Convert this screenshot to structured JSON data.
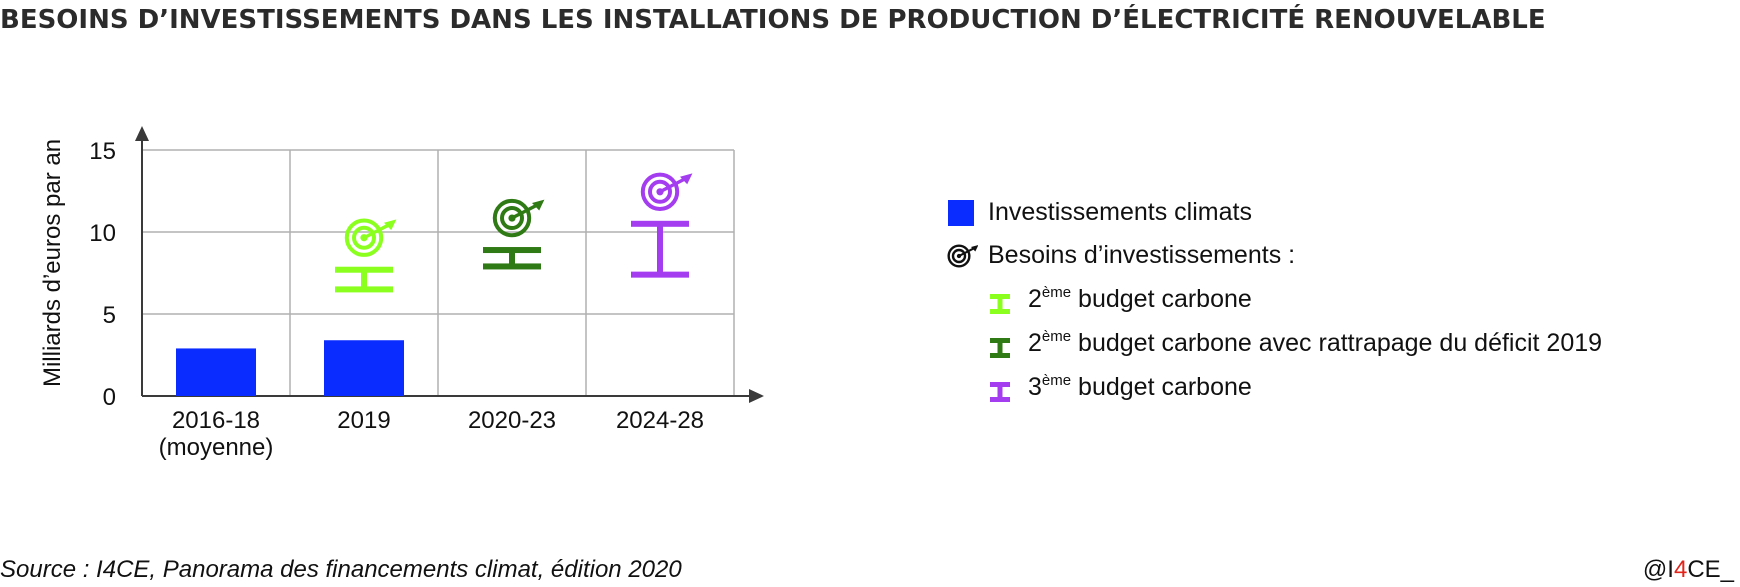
{
  "title": "BESOINS D’INVESTISSEMENTS DANS LES INSTALLATIONS DE PRODUCTION D’ÉLECTRICITÉ RENOUVELABLE",
  "source": "Source : I4CE, Panorama des financements climat, édition 2020",
  "brand": {
    "prefix": "@I",
    "highlight": "4",
    "suffix": "CE_"
  },
  "colors": {
    "bars": "#0a2cff",
    "budget2": "#8bff1e",
    "budget2_catchup": "#2f7a14",
    "budget3": "#a43cf0",
    "grid": "#b0b0b0",
    "axis": "#3a3a3a"
  },
  "legend": {
    "bars_label": "Investissements climats",
    "needs_label": "Besoins d’investissements :",
    "items": [
      {
        "ord": "2",
        "sup": "ème",
        "text": "budget carbone"
      },
      {
        "ord": "2",
        "sup": "ème",
        "text": "budget carbone avec rattrapage du déficit 2019"
      },
      {
        "ord": "3",
        "sup": "ème",
        "text": "budget carbone"
      }
    ]
  },
  "chart_data": {
    "type": "bar",
    "categories": [
      [
        "2016-18",
        "(moyenne)"
      ],
      [
        "2019"
      ],
      [
        "2020-23"
      ],
      [
        "2024-28"
      ]
    ],
    "ylabel": "Milliards d’euros par an",
    "ylim": [
      0,
      15
    ],
    "yticks": [
      0,
      5,
      10,
      15
    ],
    "grid": true,
    "legend_position": "right",
    "bars": {
      "name": "Investissements climats",
      "values": [
        2.9,
        3.4,
        null,
        null
      ]
    },
    "ranges": [
      {
        "category_index": 1,
        "series": "2ème budget carbone",
        "low": 6.5,
        "high": 7.7
      },
      {
        "category_index": 2,
        "series": "2ème budget carbone avec rattrapage du déficit 2019",
        "low": 7.9,
        "high": 8.9
      },
      {
        "category_index": 3,
        "series": "3ème budget carbone",
        "low": 7.4,
        "high": 10.5
      }
    ]
  }
}
